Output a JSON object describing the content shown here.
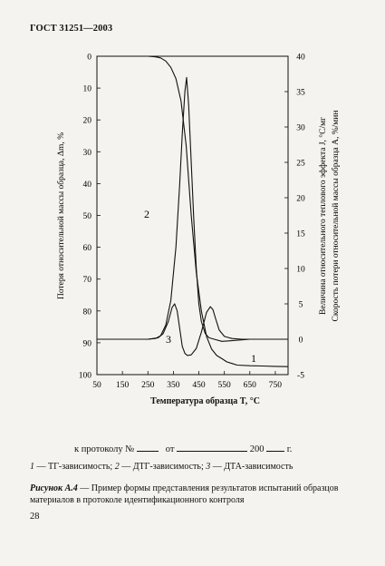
{
  "header": {
    "standard": "ГОСТ 31251—2003"
  },
  "chart_data": {
    "type": "line",
    "xlabel": "Температура образца T, °C",
    "ylabel_left": "Потеря относительной массы образца, Δm, %",
    "ylabel_right_1": "Величина относительного теплового эффекта J, °С/мг",
    "ylabel_right_2": "Скорость потери относительной массы образца A, %/мин",
    "x_ticks": [
      "50",
      "150",
      "250",
      "350",
      "450",
      "550",
      "650",
      "750"
    ],
    "y_left_ticks": [
      "0",
      "10",
      "20",
      "30",
      "40",
      "50",
      "60",
      "70",
      "80",
      "90",
      "100"
    ],
    "y_right_ticks": [
      "40",
      "35",
      "30",
      "25",
      "20",
      "15",
      "10",
      "5",
      "0",
      "-5"
    ],
    "xlim": [
      50,
      800
    ],
    "ylim_left": [
      0,
      100
    ],
    "ylim_right": [
      -5,
      40
    ],
    "series": [
      {
        "name": "1",
        "axis": "left",
        "x": [
          50,
          100,
          150,
          200,
          250,
          280,
          300,
          320,
          340,
          360,
          380,
          400,
          420,
          440,
          460,
          480,
          500,
          520,
          540,
          560,
          580,
          600,
          650,
          700,
          750,
          800
        ],
        "y": [
          0,
          0,
          0,
          0,
          0,
          0.2,
          0.5,
          1.5,
          3.5,
          7,
          14,
          28,
          50,
          68,
          80,
          88,
          92,
          94,
          95,
          96,
          96.5,
          97,
          97.2,
          97.3,
          97.4,
          97.5
        ]
      },
      {
        "name": "2",
        "axis": "right",
        "x": [
          50,
          150,
          250,
          280,
          300,
          320,
          340,
          360,
          375,
          385,
          395,
          402,
          410,
          420,
          430,
          440,
          450,
          460,
          475,
          490,
          510,
          540,
          580,
          650,
          750,
          800
        ],
        "y": [
          0,
          0,
          0,
          0.1,
          0.5,
          2,
          5.5,
          13,
          22,
          29,
          35,
          37,
          33,
          25,
          17,
          10,
          5,
          2.5,
          0.8,
          0.2,
          0,
          -0.3,
          -0.2,
          0,
          0,
          0
        ]
      },
      {
        "name": "3",
        "axis": "right",
        "x": [
          50,
          150,
          250,
          290,
          310,
          330,
          345,
          355,
          365,
          375,
          385,
          395,
          405,
          420,
          440,
          460,
          480,
          495,
          505,
          515,
          530,
          550,
          580,
          620,
          680,
          750,
          800
        ],
        "y": [
          0,
          0,
          0,
          0.2,
          0.8,
          2.5,
          4.5,
          5,
          4,
          1.5,
          -1,
          -2,
          -2.3,
          -2.2,
          -1.3,
          1,
          3.8,
          4.6,
          4.2,
          3,
          1.3,
          0.4,
          0.1,
          0,
          0,
          0,
          0
        ]
      }
    ],
    "grid": false,
    "legend": "none"
  },
  "protocol_line": {
    "prefix": "к протоколу №",
    "from": "от",
    "year": "200",
    "suffix": "г."
  },
  "legend_text": {
    "n1": "1",
    "t1": " — ТГ-зависимость; ",
    "n2": "2",
    "t2": " — ДТГ-зависимость; ",
    "n3": "3",
    "t3": " — ДТА-зависимость"
  },
  "caption": {
    "title": "Рисунок А.4",
    "text": " — Пример формы представления результатов испытаний образцов материалов в протоколе идентификационного контроля"
  },
  "page_number": "28"
}
